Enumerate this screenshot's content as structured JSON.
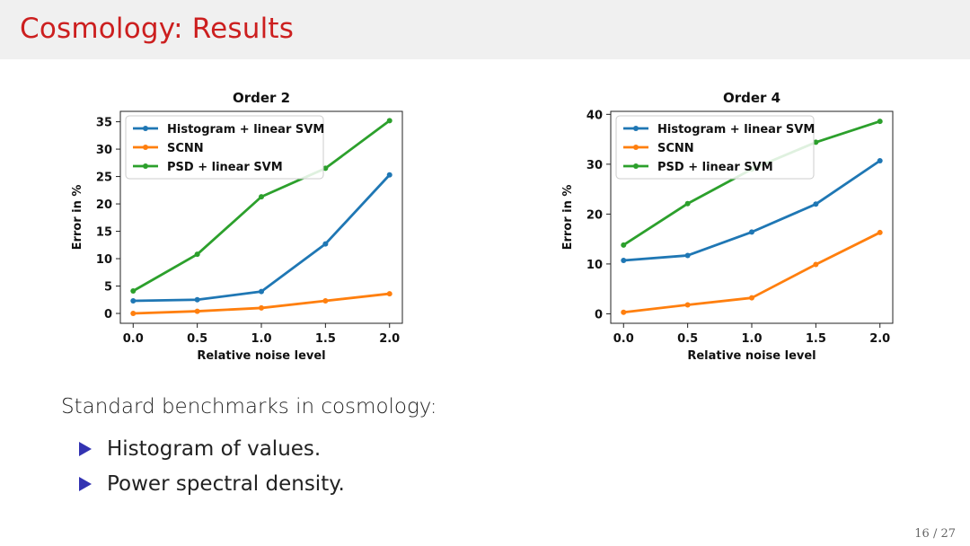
{
  "slide": {
    "title": "Cosmology: Results",
    "intro_text": "Standard benchmarks in cosmology:",
    "bullets": [
      "Histogram of values.",
      "Power spectral density."
    ],
    "page_number": "16 / 27"
  },
  "colors": {
    "title": "#cc1f1f",
    "bullet": "#3333b2",
    "histogram": "#1f77b4",
    "scnn": "#ff7f0e",
    "psd": "#2ca02c"
  },
  "chart_data": [
    {
      "type": "line",
      "title": "Order 2",
      "xlabel": "Relative noise level",
      "ylabel": "Error in %",
      "x": [
        0.0,
        0.5,
        1.0,
        1.5,
        2.0
      ],
      "xticks": [
        "0.0",
        "0.5",
        "1.0",
        "1.5",
        "2.0"
      ],
      "yticks": [
        0,
        5,
        10,
        15,
        20,
        25,
        30,
        35
      ],
      "xlim": [
        -0.1,
        2.1
      ],
      "ylim": [
        -1.8,
        36.9
      ],
      "legend_position": "top-left",
      "grid": false,
      "series": [
        {
          "name": "Histogram + linear SVM",
          "color": "#1f77b4",
          "values": [
            2.3,
            2.5,
            4.0,
            12.7,
            25.3
          ]
        },
        {
          "name": "SCNN",
          "color": "#ff7f0e",
          "values": [
            0.0,
            0.4,
            1.0,
            2.3,
            3.6
          ]
        },
        {
          "name": "PSD + linear SVM",
          "color": "#2ca02c",
          "values": [
            4.1,
            10.8,
            21.3,
            26.5,
            35.2
          ]
        }
      ]
    },
    {
      "type": "line",
      "title": "Order 4",
      "xlabel": "Relative noise level",
      "ylabel": "Error in %",
      "x": [
        0.0,
        0.5,
        1.0,
        1.5,
        2.0
      ],
      "xticks": [
        "0.0",
        "0.5",
        "1.0",
        "1.5",
        "2.0"
      ],
      "yticks": [
        0,
        10,
        20,
        30,
        40
      ],
      "xlim": [
        -0.1,
        2.1
      ],
      "ylim": [
        -1.9,
        40.6
      ],
      "legend_position": "top-left",
      "grid": false,
      "series": [
        {
          "name": "Histogram + linear SVM",
          "color": "#1f77b4",
          "values": [
            10.7,
            11.7,
            16.4,
            22.0,
            30.7
          ]
        },
        {
          "name": "SCNN",
          "color": "#ff7f0e",
          "values": [
            0.3,
            1.8,
            3.2,
            9.9,
            16.3
          ]
        },
        {
          "name": "PSD + linear SVM",
          "color": "#2ca02c",
          "values": [
            13.8,
            22.1,
            29.0,
            34.4,
            38.6
          ]
        }
      ]
    }
  ]
}
